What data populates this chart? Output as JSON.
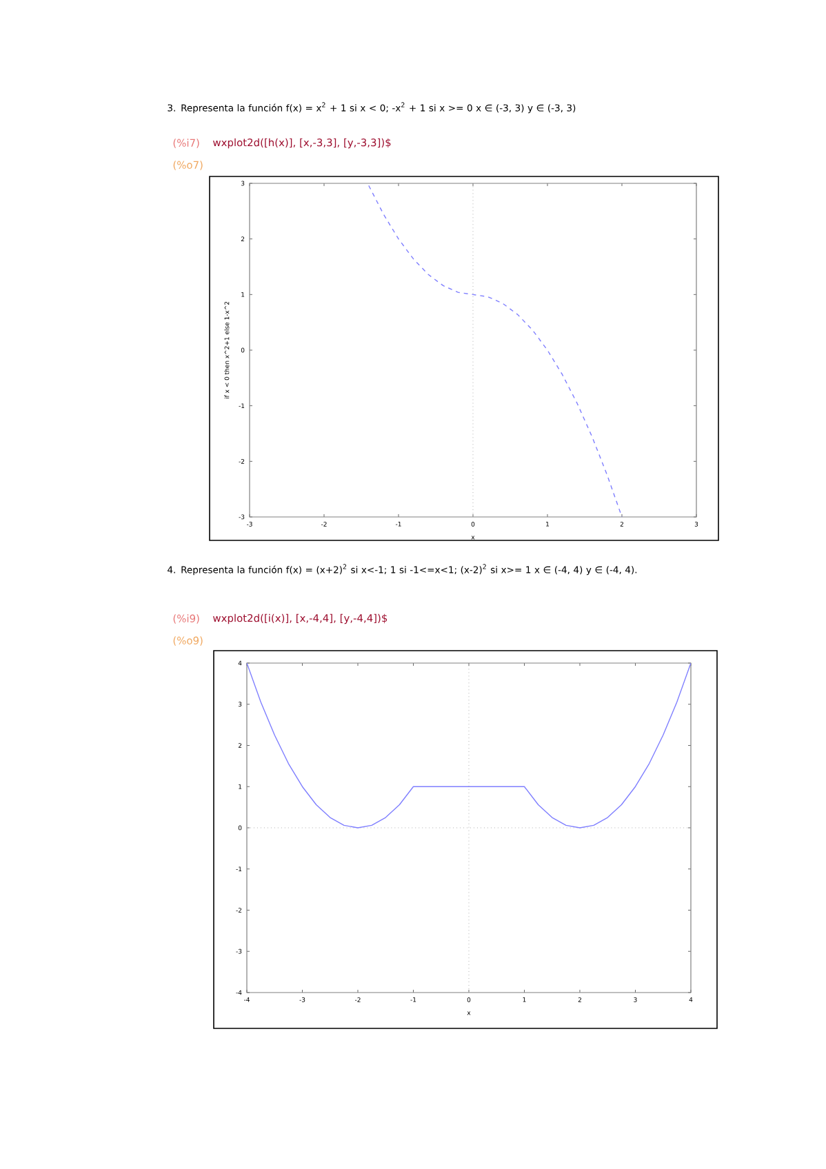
{
  "chart_data": [
    {
      "type": "line",
      "title": "3.   Representa la función f(x) = x$^{2}$ + 1 si x < 0; -x$^{2}$ + 1 si x >= 0          x ∈ (-3, 3)    y ∈ (-3, 3)",
      "annotations": [
        "(%i7)",
        "wxplot2d([h(x)], [x,-3,3], [y,-3,3])$",
        "(%o7)"
      ],
      "xlabel": "x",
      "ylabel": "if x < 0 then x^2+1 else 1-x^2",
      "xlim": [
        -3,
        3
      ],
      "ylim": [
        -3,
        3
      ],
      "xticks": [
        -3,
        -2,
        -1,
        0,
        1,
        2,
        3
      ],
      "yticks": [
        -3,
        -2,
        -1,
        0,
        1,
        2,
        3
      ],
      "grid": false,
      "line_style": "dashed",
      "ref_lines": [
        {
          "axis": "x",
          "value": 0,
          "line_style": "dotted",
          "color": "#b0b0b0"
        }
      ],
      "x": [
        -1.4,
        -1.2,
        -1,
        -0.8,
        -0.6,
        -0.4,
        -0.2,
        0,
        0.2,
        0.4,
        0.6,
        0.8,
        1,
        1.2,
        1.4,
        1.6,
        1.8,
        2
      ],
      "series": [
        {
          "color": "#7f7fff",
          "values": [
            2.96,
            2.44,
            2,
            1.64,
            1.36,
            1.16,
            1.04,
            1,
            0.96,
            0.84,
            0.64,
            0.36,
            0,
            -0.44,
            -0.96,
            -1.56,
            -2.24,
            -3
          ]
        }
      ]
    },
    {
      "type": "line",
      "title": "4.   Representa la función f(x) = (x+2)$^{2}$ si x<-1; 1 si -1<=x<1; (x-2)$^{2}$ si x>= 1          x ∈ (-4, 4) y ∈ (-4, 4).",
      "annotations": [
        "(%i9)",
        "wxplot2d([i(x)], [x,-4,4], [y,-4,4])$",
        "(%o9)"
      ],
      "xlabel": "x",
      "xlim": [
        -4,
        4
      ],
      "ylim": [
        -4,
        4
      ],
      "xticks": [
        -4,
        -3,
        -2,
        -1,
        0,
        1,
        2,
        3,
        4
      ],
      "yticks": [
        -4,
        -3,
        -2,
        -1,
        0,
        1,
        2,
        3,
        4
      ],
      "grid": false,
      "line_style": "solid",
      "ref_lines": [
        {
          "axis": "x",
          "value": 0,
          "line_style": "dotted",
          "color": "#b0b0b0"
        },
        {
          "axis": "y",
          "value": 0,
          "line_style": "dotted",
          "color": "#b0b0b0"
        }
      ],
      "x": [
        -4,
        -3.75,
        -3.5,
        -3.25,
        -3,
        -2.75,
        -2.5,
        -2.25,
        -2,
        -1.75,
        -1.5,
        -1.25,
        -1,
        1,
        1.25,
        1.5,
        1.75,
        2,
        2.25,
        2.5,
        2.75,
        3,
        3.25,
        3.5,
        3.75,
        4
      ],
      "series": [
        {
          "color": "#7f7fff",
          "values": [
            4,
            3.06,
            2.25,
            1.56,
            1,
            0.56,
            0.25,
            0.06,
            0,
            0.06,
            0.25,
            0.56,
            1,
            1,
            0.56,
            0.25,
            0.06,
            0,
            0.06,
            0.25,
            0.56,
            1,
            1.56,
            2.25,
            3.06,
            4
          ]
        }
      ]
    }
  ]
}
